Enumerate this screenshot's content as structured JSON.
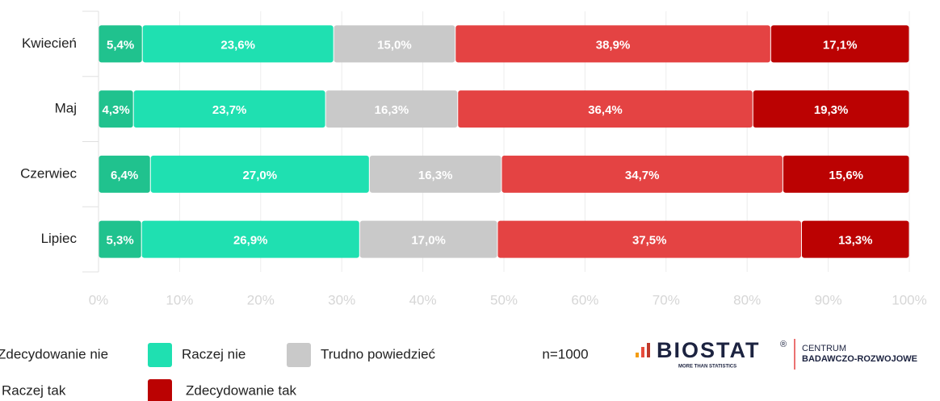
{
  "chart_data": {
    "type": "stacked-bar-horizontal",
    "categories": [
      "Kwiecień",
      "Maj",
      "Czerwiec",
      "Lipiec"
    ],
    "series": [
      {
        "name": "Zdecydowanie nie",
        "color": "#20c28e",
        "values": [
          5.4,
          4.3,
          6.4,
          5.3
        ],
        "value_labels": [
          "5,4%",
          "4,3%",
          "6,4%",
          "5,3%"
        ]
      },
      {
        "name": "Raczej nie",
        "color": "#1fe0b1",
        "values": [
          23.6,
          23.7,
          27.0,
          26.9
        ],
        "value_labels": [
          "23,6%",
          "23,7%",
          "27,0%",
          "26,9%"
        ]
      },
      {
        "name": "Trudno powiedzieć",
        "color": "#c9c9c9",
        "values": [
          15.0,
          16.3,
          16.3,
          17.0
        ],
        "value_labels": [
          "15,0%",
          "16,3%",
          "16,3%",
          "17,0%"
        ]
      },
      {
        "name": "Raczej tak",
        "color": "#e44343",
        "values": [
          38.9,
          36.4,
          34.7,
          37.5
        ],
        "value_labels": [
          "38,9%",
          "36,4%",
          "34,7%",
          "37,5%"
        ]
      },
      {
        "name": "Zdecydowanie tak",
        "color": "#bb0202",
        "values": [
          17.1,
          19.3,
          15.6,
          13.3
        ],
        "value_labels": [
          "17,1%",
          "19,3%",
          "15,6%",
          "13,3%"
        ]
      }
    ],
    "xlim": [
      0,
      100
    ],
    "xticks": [
      {
        "value": 0,
        "label": "0%"
      },
      {
        "value": 10,
        "label": "10%"
      },
      {
        "value": 20,
        "label": "20%"
      },
      {
        "value": 30,
        "label": "30%"
      },
      {
        "value": 40,
        "label": "40%"
      },
      {
        "value": 50,
        "label": "50%"
      },
      {
        "value": 60,
        "label": "60%"
      },
      {
        "value": 70,
        "label": "70%"
      },
      {
        "value": 80,
        "label": "80%"
      },
      {
        "value": 90,
        "label": "90%"
      },
      {
        "value": 100,
        "label": "100%"
      }
    ],
    "grid": true,
    "legend": "bottom",
    "note": "n=1000"
  },
  "branding": {
    "name": "BIOSTAT",
    "registered": "®",
    "tagline": "MORE THAN STATISTICS",
    "line1": "CENTRUM",
    "line2": "BADAWCZO-ROZWOJOWE"
  }
}
